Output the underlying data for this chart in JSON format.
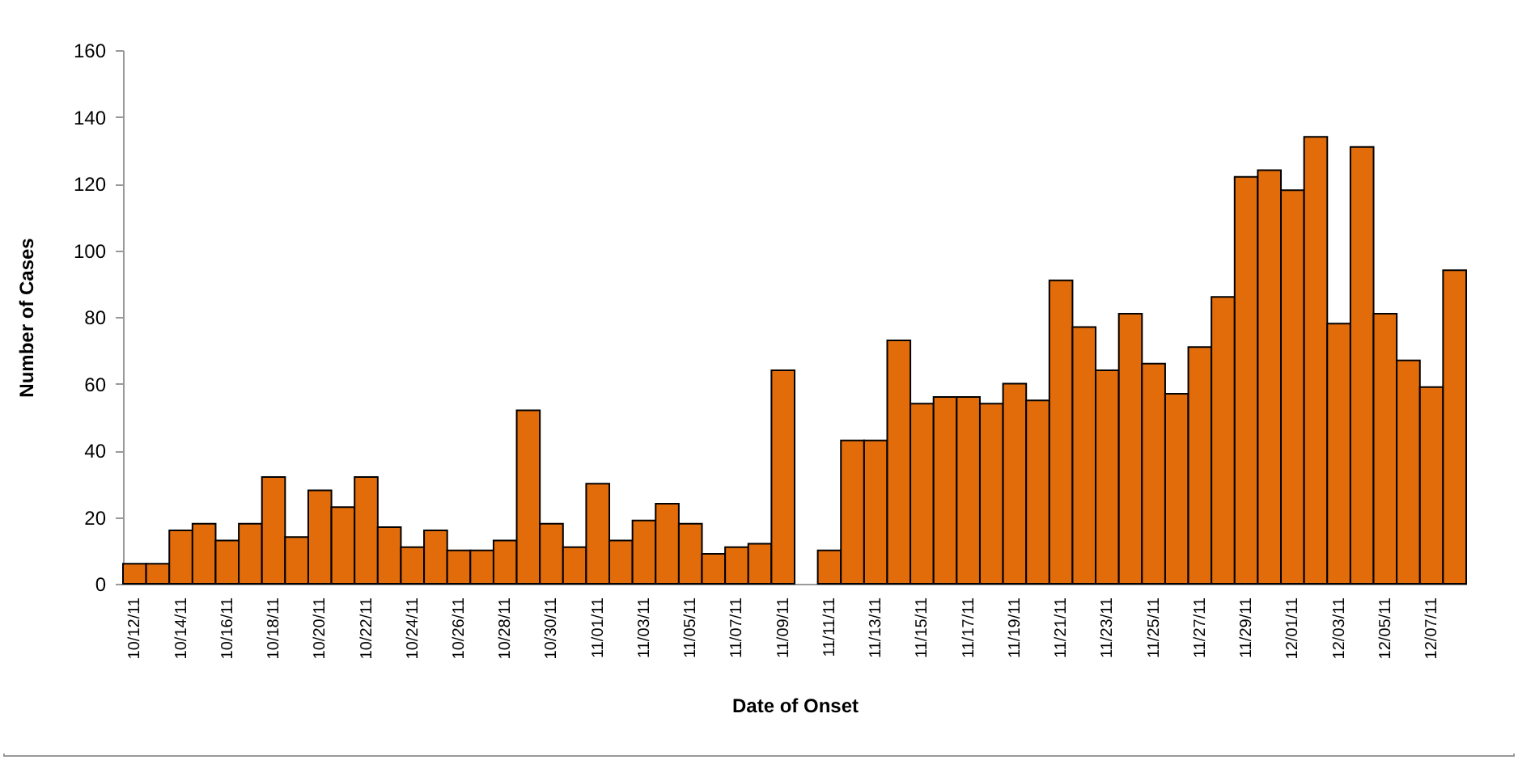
{
  "chart_data": {
    "type": "bar",
    "xlabel": "Date of Onset",
    "ylabel": "Number of Cases",
    "categories": [
      "10/12/11",
      null,
      "10/14/11",
      null,
      "10/16/11",
      null,
      "10/18/11",
      null,
      "10/20/11",
      null,
      "10/22/11",
      null,
      "10/24/11",
      null,
      "10/26/11",
      null,
      "10/28/11",
      null,
      "10/30/11",
      null,
      "11/01/11",
      null,
      "11/03/11",
      null,
      "11/05/11",
      null,
      "11/07/11",
      null,
      "11/09/11",
      null,
      "11/11/11",
      null,
      "11/13/11",
      null,
      "11/15/11",
      null,
      "11/17/11",
      null,
      "11/19/11",
      null,
      "11/21/11",
      null,
      "11/23/11",
      null,
      "11/25/11",
      null,
      "11/27/11",
      null,
      "11/29/11",
      null,
      "12/01/11",
      null,
      "12/03/11",
      null,
      "12/05/11",
      null,
      "12/07/11",
      null
    ],
    "values": [
      6,
      6,
      16,
      18,
      13,
      18,
      32,
      14,
      28,
      23,
      32,
      17,
      11,
      16,
      10,
      10,
      13,
      52,
      18,
      11,
      30,
      13,
      19,
      24,
      18,
      9,
      11,
      12,
      64,
      null,
      10,
      43,
      43,
      73,
      54,
      56,
      56,
      54,
      60,
      55,
      91,
      77,
      64,
      81,
      66,
      57,
      71,
      86,
      122,
      124,
      118,
      134,
      78,
      131,
      81,
      67,
      59,
      94
    ],
    "color": "#e36c0a",
    "ylim": [
      0,
      160
    ],
    "yticks": [
      0,
      20,
      40,
      60,
      80,
      100,
      120,
      140,
      160
    ],
    "grid": false
  }
}
